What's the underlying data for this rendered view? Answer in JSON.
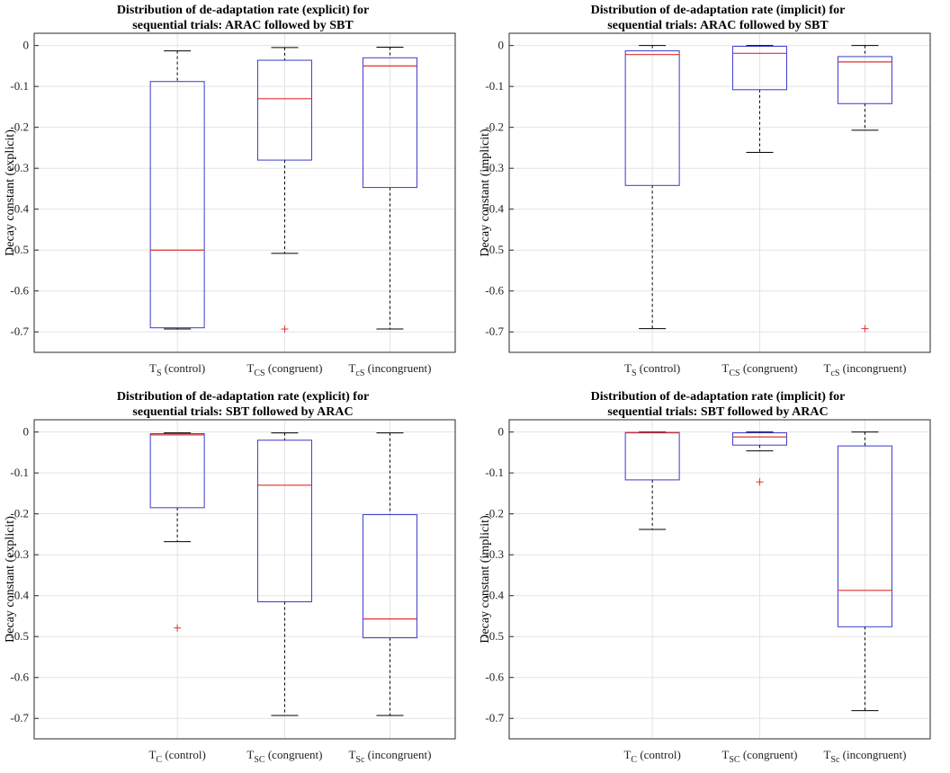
{
  "chart_data": [
    {
      "type": "box",
      "title_lines": [
        "Distribution of de-adaptation rate (explicit) for",
        "sequential trials: ARAC followed by SBT"
      ],
      "ylabel": "Decay constant (explicit)",
      "ylim": [
        -0.75,
        0.03
      ],
      "yticks": [
        0,
        -0.1,
        -0.2,
        -0.3,
        -0.4,
        -0.5,
        -0.6,
        -0.7
      ],
      "grid": true,
      "categories": [
        {
          "main": "T",
          "sub": "S",
          "rest": " (control)"
        },
        {
          "main": "T",
          "sub": "CS",
          "rest": " (congruent)"
        },
        {
          "main": "T",
          "sub": "cS",
          "rest": " (incongruent)"
        }
      ],
      "boxes": [
        {
          "whisker_high": -0.013,
          "q3": -0.088,
          "median": -0.5,
          "q1": -0.69,
          "whisker_low": -0.693,
          "outliers": []
        },
        {
          "whisker_high": -0.005,
          "q3": -0.036,
          "median": -0.13,
          "q1": -0.28,
          "whisker_low": -0.508,
          "outliers": [
            -0.693
          ]
        },
        {
          "whisker_high": -0.004,
          "q3": -0.03,
          "median": -0.05,
          "q1": -0.347,
          "whisker_low": -0.693,
          "outliers": []
        }
      ]
    },
    {
      "type": "box",
      "title_lines": [
        "Distribution of de-adaptation rate (implicit) for",
        "sequential trials: ARAC followed by SBT"
      ],
      "ylabel": "Decay constant (implicit)",
      "ylim": [
        -0.75,
        0.03
      ],
      "yticks": [
        0,
        -0.1,
        -0.2,
        -0.3,
        -0.4,
        -0.5,
        -0.6,
        -0.7
      ],
      "grid": true,
      "categories": [
        {
          "main": "T",
          "sub": "S",
          "rest": " (control)"
        },
        {
          "main": "T",
          "sub": "CS",
          "rest": " (congruent)"
        },
        {
          "main": "T",
          "sub": "cS",
          "rest": " (incongruent)"
        }
      ],
      "boxes": [
        {
          "whisker_high": 0.0,
          "q3": -0.013,
          "median": -0.022,
          "q1": -0.342,
          "whisker_low": -0.692,
          "outliers": []
        },
        {
          "whisker_high": 0.0,
          "q3": -0.002,
          "median": -0.019,
          "q1": -0.108,
          "whisker_low": -0.261,
          "outliers": []
        },
        {
          "whisker_high": 0.0,
          "q3": -0.027,
          "median": -0.04,
          "q1": -0.142,
          "whisker_low": -0.207,
          "outliers": [
            -0.692
          ]
        }
      ]
    },
    {
      "type": "box",
      "title_lines": [
        "Distribution of de-adaptation rate (explicit) for",
        "sequential trials: SBT followed by ARAC"
      ],
      "ylabel": "Decay constant (explicit)",
      "ylim": [
        -0.75,
        0.03
      ],
      "yticks": [
        0,
        -0.1,
        -0.2,
        -0.3,
        -0.4,
        -0.5,
        -0.6,
        -0.7
      ],
      "grid": true,
      "categories": [
        {
          "main": "T",
          "sub": "C",
          "rest": " (control)"
        },
        {
          "main": "T",
          "sub": "SC",
          "rest": " (congruent)"
        },
        {
          "main": "T",
          "sub": "Sc",
          "rest": " (incongruent)"
        }
      ],
      "boxes": [
        {
          "whisker_high": -0.002,
          "q3": -0.004,
          "median": -0.007,
          "q1": -0.185,
          "whisker_low": -0.268,
          "outliers": [
            -0.479
          ]
        },
        {
          "whisker_high": -0.002,
          "q3": -0.02,
          "median": -0.13,
          "q1": -0.415,
          "whisker_low": -0.693,
          "outliers": []
        },
        {
          "whisker_high": -0.002,
          "q3": -0.202,
          "median": -0.457,
          "q1": -0.503,
          "whisker_low": -0.693,
          "outliers": []
        }
      ]
    },
    {
      "type": "box",
      "title_lines": [
        "Distribution of de-adaptation rate (implicit) for",
        "sequential trials: SBT followed by ARAC"
      ],
      "ylabel": "Decay constant (implicit)",
      "ylim": [
        -0.75,
        0.03
      ],
      "yticks": [
        0,
        -0.1,
        -0.2,
        -0.3,
        -0.4,
        -0.5,
        -0.6,
        -0.7
      ],
      "grid": true,
      "categories": [
        {
          "main": "T",
          "sub": "C",
          "rest": " (control)"
        },
        {
          "main": "T",
          "sub": "SC",
          "rest": " (congruent)"
        },
        {
          "main": "T",
          "sub": "Sc",
          "rest": " (incongruent)"
        }
      ],
      "boxes": [
        {
          "whisker_high": 0.0,
          "q3": -0.001,
          "median": -0.002,
          "q1": -0.117,
          "whisker_low": -0.238,
          "outliers": []
        },
        {
          "whisker_high": 0.0,
          "q3": -0.002,
          "median": -0.012,
          "q1": -0.032,
          "whisker_low": -0.046,
          "outliers": [
            -0.122
          ]
        },
        {
          "whisker_high": 0.0,
          "q3": -0.034,
          "median": -0.387,
          "q1": -0.476,
          "whisker_low": -0.681,
          "outliers": []
        }
      ]
    }
  ],
  "colors": {
    "box": "#3a3acc",
    "median": "#e03030",
    "outlier": "#e03030",
    "whisker": "#000000",
    "grid": "#e3e3e3",
    "axis": "#2a2a2a"
  }
}
